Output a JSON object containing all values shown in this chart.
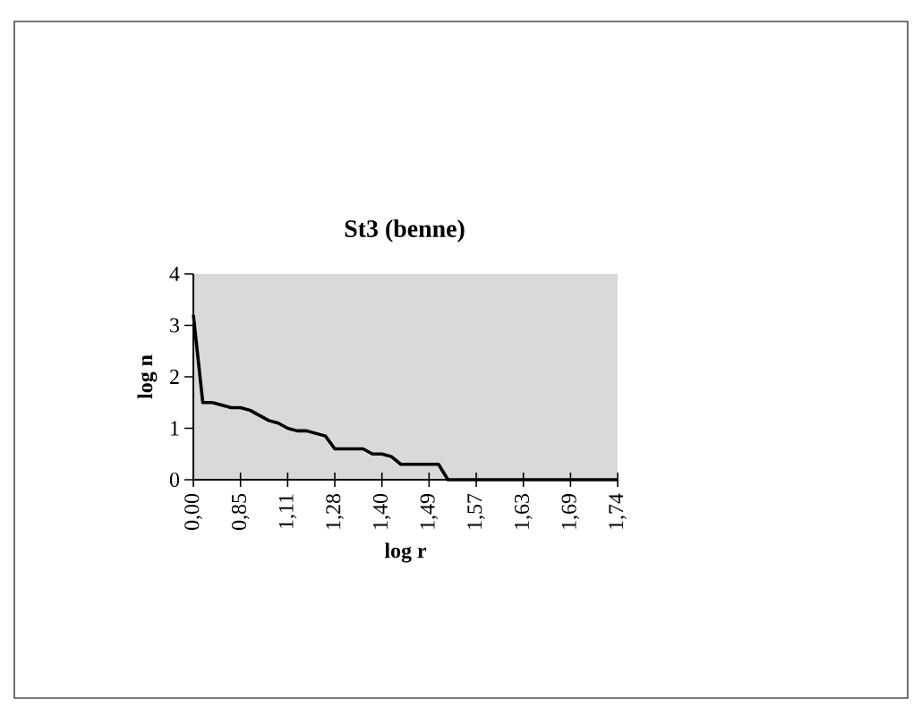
{
  "chart_data": {
    "type": "line",
    "title": "St3 (benne)",
    "xlabel": "log r",
    "ylabel": "log n",
    "categories": [
      "0,00",
      null,
      null,
      null,
      null,
      "0,85",
      null,
      null,
      null,
      null,
      "1,11",
      null,
      null,
      null,
      null,
      "1,28",
      null,
      null,
      null,
      null,
      "1,40",
      null,
      null,
      null,
      null,
      "1,49",
      null,
      null,
      null,
      null,
      "1,57",
      null,
      null,
      null,
      null,
      "1,63",
      null,
      null,
      null,
      null,
      "1,69",
      null,
      null,
      null,
      null,
      "1,74"
    ],
    "series": [
      {
        "color": "#000000",
        "values": [
          3.2,
          1.5,
          1.5,
          1.45,
          1.4,
          1.4,
          1.35,
          1.25,
          1.15,
          1.1,
          1.0,
          0.95,
          0.95,
          0.9,
          0.85,
          0.6,
          0.6,
          0.6,
          0.6,
          0.5,
          0.5,
          0.45,
          0.3,
          0.3,
          0.3,
          0.3,
          0.3,
          0,
          0,
          0,
          0,
          0,
          0,
          0,
          0,
          0,
          0,
          0,
          0,
          0,
          0,
          0,
          0,
          0,
          0,
          0
        ]
      }
    ],
    "ylim": [
      0,
      4
    ],
    "yticks": [
      0,
      1,
      2,
      3,
      4
    ],
    "grid": false,
    "legend": false,
    "marker": "none",
    "line_style": "solid"
  }
}
